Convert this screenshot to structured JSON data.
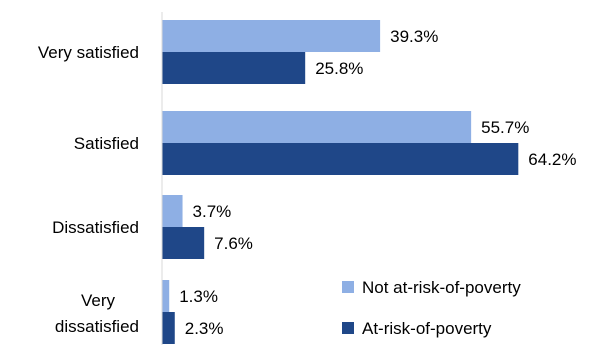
{
  "chart_data": {
    "type": "bar",
    "orientation": "horizontal",
    "categories": [
      "Very satisfied",
      "Satisfied",
      "Dissatisfied",
      "Very dissatisfied"
    ],
    "series": [
      {
        "name": "Not at-risk-of-poverty",
        "values": [
          39.3,
          55.7,
          3.7,
          1.3
        ],
        "labels": [
          "39.3%",
          "55.7%",
          "3.7%",
          "1.3%"
        ],
        "color": "#8EAFE4"
      },
      {
        "name": "At-risk-of-poverty",
        "values": [
          25.8,
          64.2,
          7.6,
          2.3
        ],
        "labels": [
          "25.8%",
          "64.2%",
          "7.6%",
          "2.3%"
        ],
        "color": "#1F4788"
      }
    ],
    "title": "",
    "xlabel": "",
    "ylabel": "",
    "xlim": [
      0,
      70
    ],
    "grid": false,
    "legend": "bottom-right"
  }
}
